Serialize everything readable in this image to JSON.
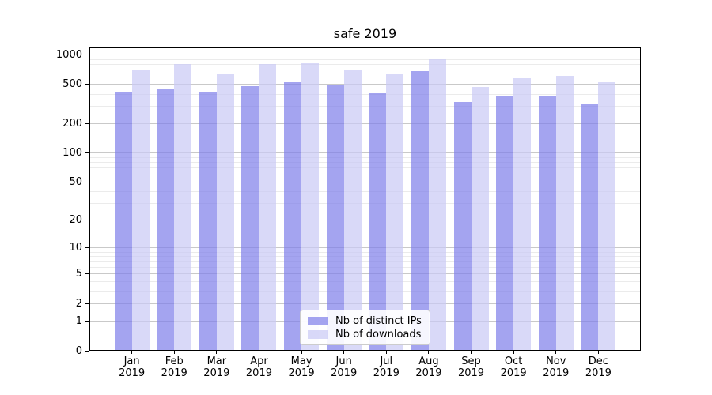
{
  "title": "safe 2019",
  "chart_data": {
    "type": "bar",
    "title": "safe 2019",
    "months": [
      "Jan",
      "Feb",
      "Mar",
      "Apr",
      "May",
      "Jun",
      "Jul",
      "Aug",
      "Sep",
      "Oct",
      "Nov",
      "Dec"
    ],
    "year": "2019",
    "series": [
      {
        "name": "Nb of distinct IPs",
        "color": "rgba(125,125,234,0.7)",
        "values": [
          425,
          450,
          415,
          485,
          530,
          490,
          410,
          680,
          330,
          385,
          385,
          315
        ]
      },
      {
        "name": "Nb of downloads",
        "color": "rgba(201,201,245,0.7)",
        "values": [
          700,
          810,
          635,
          810,
          830,
          700,
          635,
          900,
          470,
          575,
          615,
          525
        ]
      }
    ],
    "yscale": "log1p",
    "yticks": [
      0,
      1,
      2,
      5,
      10,
      20,
      50,
      100,
      200,
      500,
      1000
    ],
    "minor_ticks": [
      3,
      4,
      6,
      7,
      8,
      9,
      30,
      40,
      60,
      70,
      80,
      90,
      300,
      400,
      600,
      700,
      800,
      900
    ],
    "ylim": [
      0,
      1190
    ],
    "xlabel": "",
    "ylabel": "",
    "grid": true,
    "legend_position": "lower center"
  },
  "colors": {
    "grid_major": "#c9c9c9",
    "grid_minor": "#ebebeb",
    "axis": "#000000",
    "background": "#ffffff"
  }
}
